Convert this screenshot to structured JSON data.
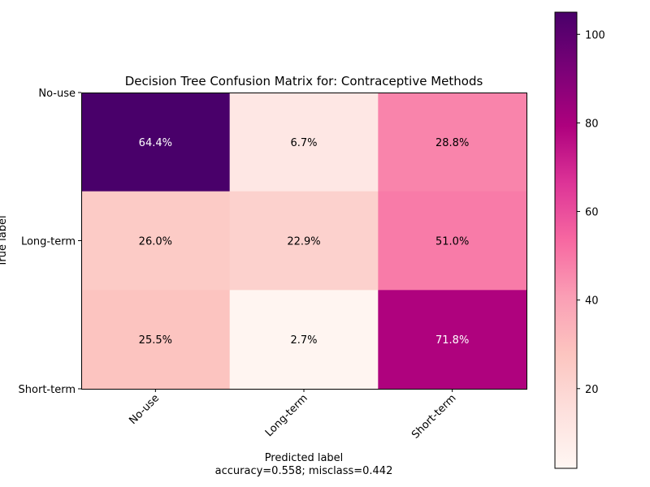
{
  "chart_data": {
    "type": "heatmap",
    "title": "Decision Tree Confusion Matrix for: Contraceptive Methods",
    "xlabel": "Predicted label",
    "xlabel_sub": "accuracy=0.558; misclass=0.442",
    "ylabel": "True label",
    "row_labels": [
      "No-use",
      "Long-term",
      "Short-term"
    ],
    "col_labels": [
      "No-use",
      "Long-term",
      "Short-term"
    ],
    "cell_labels": [
      [
        "64.4%",
        "6.7%",
        "28.8%"
      ],
      [
        "26.0%",
        "22.9%",
        "51.0%"
      ],
      [
        "25.5%",
        "2.7%",
        "71.8%"
      ]
    ],
    "values": [
      [
        105,
        11,
        47
      ],
      [
        25,
        22,
        49
      ],
      [
        28,
        3,
        79
      ]
    ],
    "colormap": "RdPu",
    "colorbar": {
      "min": 2,
      "max": 105,
      "ticks": [
        20,
        40,
        60,
        80,
        100
      ]
    },
    "grid": false
  }
}
